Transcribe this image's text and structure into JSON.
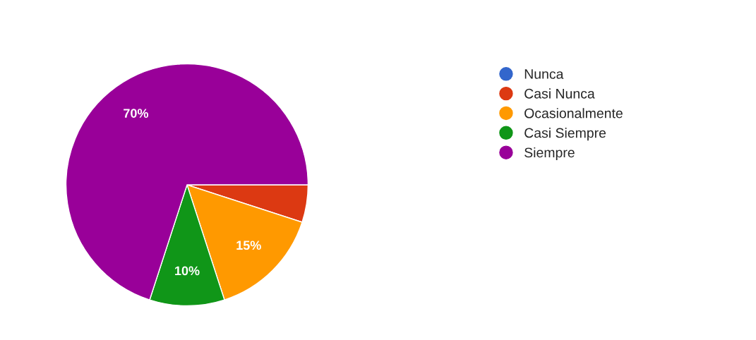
{
  "chart_data": {
    "type": "pie",
    "categories": [
      "Nunca",
      "Casi Nunca",
      "Ocasionalmente",
      "Casi Siempre",
      "Siempre"
    ],
    "values": [
      0,
      5,
      15,
      10,
      70
    ],
    "colors": [
      "#3366cc",
      "#dc3912",
      "#ff9900",
      "#109618",
      "#990099"
    ],
    "value_labels": [
      null,
      null,
      "15%",
      "10%",
      "70%"
    ],
    "legend": "right"
  }
}
